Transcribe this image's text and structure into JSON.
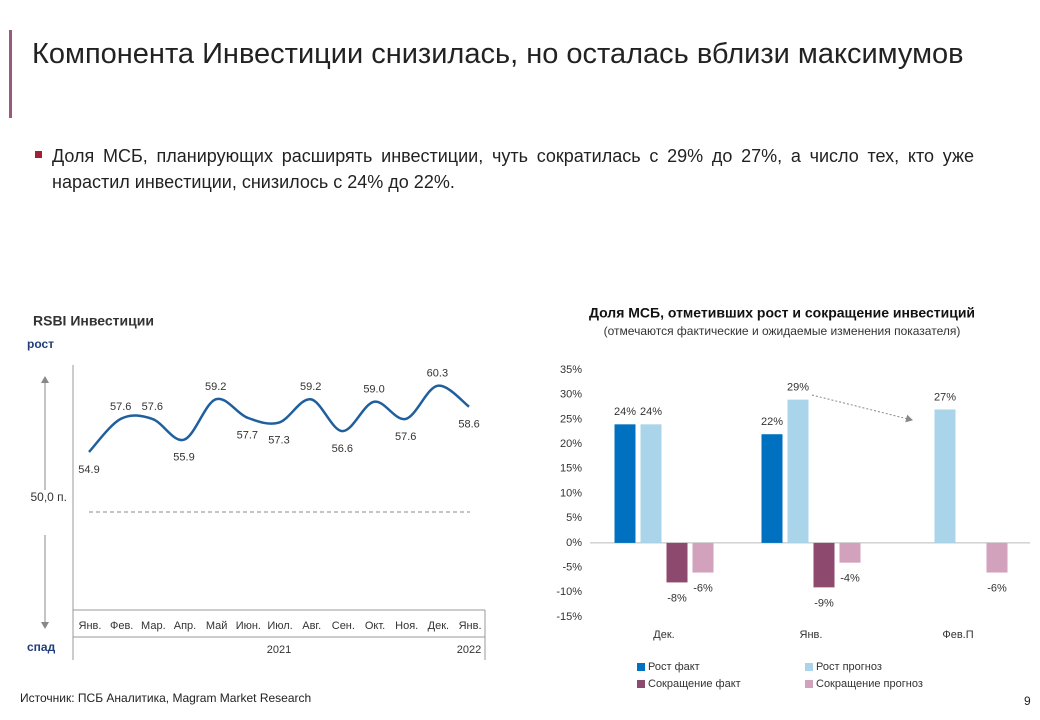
{
  "header": {
    "title": "Компонента Инвестиции снизилась, но осталась вблизи максимумов",
    "bullet": "Доля МСБ, планирующих расширять инвестиции, чуть сократилась с 29% до 27%, а число тех, кто уже нарастил инвестиции, снизилось с 24% до 22%."
  },
  "chart_data": [
    {
      "type": "line",
      "title": "RSBI Инвестиции",
      "top_label": "рост",
      "bottom_label": "спад",
      "categories": [
        "Янв.",
        "Фев.",
        "Мар.",
        "Апр.",
        "Май",
        "Июн.",
        "Июл.",
        "Авг.",
        "Сен.",
        "Окт.",
        "Ноя.",
        "Дек.",
        "Янв."
      ],
      "year_labels": [
        "2021",
        "2022"
      ],
      "values": [
        54.9,
        57.6,
        57.6,
        55.9,
        59.2,
        57.7,
        57.3,
        59.2,
        56.6,
        59.0,
        57.6,
        60.3,
        58.6
      ],
      "value_labels": [
        "54.9",
        "57.6",
        "57.6",
        "55.9",
        "59.2",
        "57.7",
        "57.3",
        "59.2",
        "56.6",
        "59.0",
        "57.6",
        "60.3",
        "58.6"
      ],
      "color": "#1f5f9e",
      "ylim": [
        42,
        62
      ],
      "reference_line": {
        "value": 50,
        "label": "50,0 п."
      }
    },
    {
      "type": "bar",
      "title": "Доля МСБ, отметивших рост и сокращение инвестиций",
      "subtitle": "(отмечаются фактические и ожидаемые изменения показателя)",
      "categories": [
        "Дек.",
        "Янв.",
        "Фев.П"
      ],
      "series": [
        {
          "name": "Рост факт",
          "color": "#0070c0",
          "values": [
            24,
            22,
            null
          ],
          "value_labels": [
            "24%",
            "22%",
            null
          ]
        },
        {
          "name": "Рост прогноз",
          "color": "#a9d4ea",
          "values": [
            24,
            29,
            27
          ],
          "value_labels": [
            "24%",
            "29%",
            "27%"
          ]
        },
        {
          "name": "Сокращение факт",
          "color": "#8e4a6e",
          "values": [
            -8,
            -9,
            null
          ],
          "value_labels": [
            "-8%",
            "-9%",
            null
          ]
        },
        {
          "name": "Сокращение прогноз",
          "color": "#d2a2bc",
          "values": [
            -6,
            -4,
            -6
          ],
          "value_labels": [
            "-6%",
            "-4%",
            "-6%"
          ]
        }
      ],
      "ylim": [
        -15,
        35
      ],
      "yticks": [
        {
          "value": 35,
          "label": "35%"
        },
        {
          "value": 30,
          "label": "30%"
        },
        {
          "value": 25,
          "label": "25%"
        },
        {
          "value": 20,
          "label": "20%"
        },
        {
          "value": 15,
          "label": "15%"
        },
        {
          "value": 10,
          "label": "10%"
        },
        {
          "value": 5,
          "label": "5%"
        },
        {
          "value": 0,
          "label": "0%"
        },
        {
          "value": -5,
          "label": "-5%"
        },
        {
          "value": -10,
          "label": "-10%"
        },
        {
          "value": -15,
          "label": "-15%"
        }
      ]
    }
  ],
  "footer": {
    "source": "Источник: ПСБ Аналитика, Magram Market Research",
    "page": "9"
  }
}
